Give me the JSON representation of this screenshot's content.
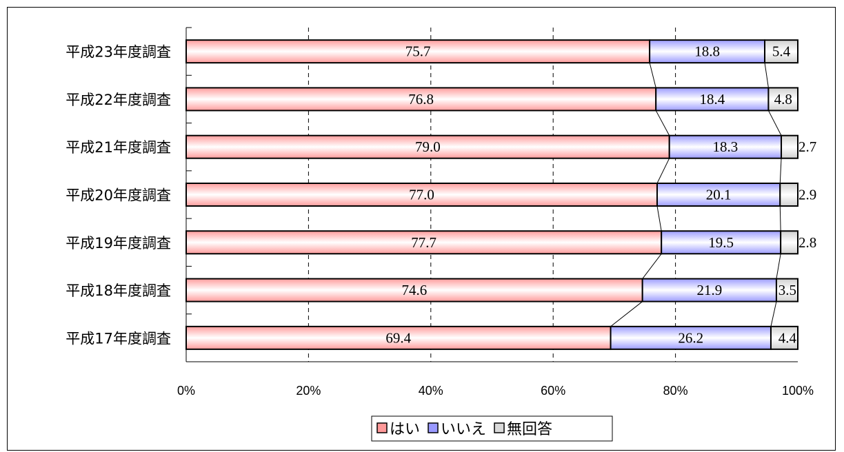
{
  "chart_data": {
    "type": "bar",
    "orientation": "horizontal",
    "stacked": "percent",
    "categories": [
      "平成23年度調査",
      "平成22年度調査",
      "平成21年度調査",
      "平成20年度調査",
      "平成19年度調査",
      "平成18年度調査",
      "平成17年度調査"
    ],
    "series": [
      {
        "name": "はい",
        "values": [
          75.7,
          76.8,
          79.0,
          77.0,
          77.7,
          74.6,
          69.4
        ],
        "labels": [
          "75.7",
          "76.8",
          "79.0",
          "77.0",
          "77.7",
          "74.6",
          "69.4"
        ],
        "color": "#ff9999"
      },
      {
        "name": "いいえ",
        "values": [
          18.8,
          18.4,
          18.3,
          20.1,
          19.5,
          21.9,
          26.2
        ],
        "labels": [
          "18.8",
          "18.4",
          "18.3",
          "20.1",
          "19.5",
          "21.9",
          "26.2"
        ],
        "color": "#9999ff"
      },
      {
        "name": "無回答",
        "values": [
          5.4,
          4.8,
          2.7,
          2.9,
          2.8,
          3.5,
          4.4
        ],
        "labels": [
          "5.4",
          "4.8",
          "2.7",
          "2.9",
          "2.8",
          "3.5",
          "4.4"
        ],
        "color": "#d9d9d9"
      }
    ],
    "xticks": [
      "0%",
      "20%",
      "40%",
      "60%",
      "80%",
      "100%"
    ],
    "xlim": [
      0,
      100
    ],
    "grid": "vertical dashed",
    "legend_position": "bottom"
  }
}
